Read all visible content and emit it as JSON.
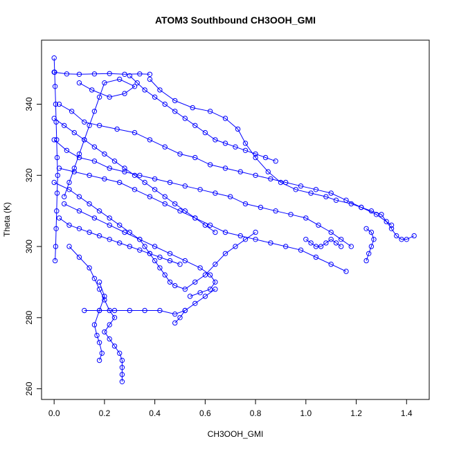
{
  "chart_data": {
    "type": "scatter",
    "title": "ATOM3 Southbound CH3OOH_GMI",
    "xlabel": "CH3OOH_GMI",
    "ylabel": "Theta (K)",
    "xlim": [
      -0.05,
      1.49
    ],
    "ylim": [
      257,
      358
    ],
    "xticks": [
      0.0,
      0.2,
      0.4,
      0.6,
      0.8,
      1.0,
      1.2,
      1.4
    ],
    "xtick_labels": [
      "0.0",
      "0.2",
      "0.4",
      "0.6",
      "0.8",
      "1.0",
      "1.2",
      "1.4"
    ],
    "yticks": [
      260,
      280,
      300,
      320,
      340
    ],
    "ytick_labels": [
      "260",
      "280",
      "300",
      "320",
      "340"
    ],
    "color": "#0000ff",
    "marker": "open-circle",
    "connected": true,
    "grid": false,
    "series": [
      {
        "values": [
          [
            0.0,
            353
          ],
          [
            0.002,
            349
          ],
          [
            0.004,
            345
          ],
          [
            0.006,
            340
          ],
          [
            0.008,
            335
          ],
          [
            0.01,
            330
          ],
          [
            0.012,
            325
          ],
          [
            0.014,
            320
          ],
          [
            0.012,
            315
          ],
          [
            0.01,
            310
          ],
          [
            0.008,
            305
          ],
          [
            0.006,
            300
          ],
          [
            0.004,
            296
          ]
        ]
      },
      {
        "values": [
          [
            0.0,
            349
          ],
          [
            0.05,
            348.5
          ],
          [
            0.1,
            348.4
          ],
          [
            0.16,
            348.5
          ],
          [
            0.22,
            348.6
          ],
          [
            0.28,
            348.4
          ],
          [
            0.34,
            348.5
          ],
          [
            0.38,
            348.4
          ]
        ]
      },
      {
        "values": [
          [
            0.38,
            347
          ],
          [
            0.42,
            344
          ],
          [
            0.48,
            341
          ],
          [
            0.55,
            339
          ],
          [
            0.62,
            338
          ],
          [
            0.68,
            336
          ],
          [
            0.73,
            333
          ],
          [
            0.76,
            329
          ],
          [
            0.8,
            325
          ],
          [
            0.85,
            321
          ],
          [
            0.9,
            318
          ],
          [
            0.96,
            316
          ],
          [
            1.02,
            315
          ],
          [
            1.08,
            314
          ],
          [
            1.12,
            313
          ],
          [
            1.18,
            312
          ],
          [
            1.22,
            311
          ],
          [
            1.26,
            310
          ],
          [
            1.3,
            309
          ],
          [
            1.32,
            307
          ],
          [
            1.34,
            305
          ],
          [
            1.36,
            303
          ],
          [
            1.38,
            302
          ],
          [
            1.4,
            302
          ],
          [
            1.43,
            303
          ]
        ]
      },
      {
        "values": [
          [
            0.02,
            340
          ],
          [
            0.07,
            338
          ],
          [
            0.12,
            335
          ],
          [
            0.18,
            334
          ],
          [
            0.25,
            333
          ],
          [
            0.32,
            332
          ],
          [
            0.38,
            330
          ],
          [
            0.44,
            328
          ],
          [
            0.5,
            326
          ],
          [
            0.56,
            325
          ],
          [
            0.62,
            323
          ],
          [
            0.68,
            322
          ],
          [
            0.74,
            321
          ],
          [
            0.8,
            320
          ],
          [
            0.86,
            319
          ],
          [
            0.92,
            318
          ],
          [
            0.98,
            317
          ],
          [
            1.04,
            316
          ],
          [
            1.1,
            315
          ],
          [
            1.16,
            313
          ],
          [
            1.22,
            311
          ],
          [
            1.28,
            309
          ],
          [
            1.34,
            306
          ]
        ]
      },
      {
        "values": [
          [
            0.0,
            330
          ],
          [
            0.05,
            327
          ],
          [
            0.1,
            325
          ],
          [
            0.16,
            324
          ],
          [
            0.22,
            322
          ],
          [
            0.28,
            321
          ],
          [
            0.34,
            320
          ],
          [
            0.4,
            319
          ],
          [
            0.46,
            318
          ],
          [
            0.52,
            317
          ],
          [
            0.58,
            316
          ],
          [
            0.64,
            315
          ],
          [
            0.7,
            314
          ],
          [
            0.76,
            312
          ],
          [
            0.82,
            311
          ],
          [
            0.88,
            310
          ],
          [
            0.94,
            309
          ],
          [
            1.0,
            308
          ],
          [
            1.05,
            306
          ],
          [
            1.1,
            304
          ],
          [
            1.14,
            302
          ],
          [
            1.18,
            300
          ]
        ]
      },
      {
        "values": [
          [
            0.1,
            346
          ],
          [
            0.15,
            344
          ],
          [
            0.22,
            342
          ],
          [
            0.28,
            343
          ],
          [
            0.32,
            345
          ],
          [
            0.26,
            347
          ],
          [
            0.2,
            346
          ],
          [
            0.18,
            342
          ],
          [
            0.16,
            338
          ],
          [
            0.14,
            334
          ],
          [
            0.12,
            330
          ],
          [
            0.1,
            326
          ],
          [
            0.08,
            322
          ],
          [
            0.06,
            318
          ],
          [
            0.04,
            314
          ]
        ]
      },
      {
        "values": [
          [
            0.02,
            322
          ],
          [
            0.08,
            321
          ],
          [
            0.14,
            320
          ],
          [
            0.2,
            319
          ],
          [
            0.26,
            318
          ],
          [
            0.32,
            316
          ],
          [
            0.38,
            314
          ],
          [
            0.44,
            312
          ],
          [
            0.5,
            310
          ],
          [
            0.56,
            308
          ],
          [
            0.62,
            306
          ],
          [
            0.68,
            304
          ],
          [
            0.74,
            303
          ],
          [
            0.8,
            302
          ],
          [
            0.86,
            301
          ],
          [
            0.92,
            300
          ],
          [
            0.98,
            299
          ],
          [
            1.04,
            297
          ],
          [
            1.1,
            295
          ],
          [
            1.16,
            293
          ]
        ]
      },
      {
        "values": [
          [
            0.04,
            312
          ],
          [
            0.1,
            310
          ],
          [
            0.16,
            308
          ],
          [
            0.22,
            306
          ],
          [
            0.28,
            304
          ],
          [
            0.34,
            302
          ],
          [
            0.4,
            300
          ],
          [
            0.46,
            298
          ],
          [
            0.52,
            296
          ],
          [
            0.58,
            294
          ],
          [
            0.62,
            292
          ],
          [
            0.64,
            290
          ],
          [
            0.62,
            288
          ],
          [
            0.58,
            287
          ],
          [
            0.54,
            286
          ]
        ]
      },
      {
        "values": [
          [
            0.06,
            300
          ],
          [
            0.1,
            297
          ],
          [
            0.14,
            294
          ],
          [
            0.16,
            291
          ],
          [
            0.18,
            288
          ],
          [
            0.2,
            285
          ],
          [
            0.22,
            282
          ],
          [
            0.24,
            280
          ],
          [
            0.22,
            278
          ],
          [
            0.2,
            276
          ],
          [
            0.22,
            274
          ],
          [
            0.24,
            272
          ],
          [
            0.26,
            270
          ],
          [
            0.27,
            268
          ],
          [
            0.27,
            266
          ],
          [
            0.27,
            264
          ],
          [
            0.27,
            262
          ]
        ]
      },
      {
        "values": [
          [
            0.18,
            290
          ],
          [
            0.2,
            286
          ],
          [
            0.18,
            282
          ],
          [
            0.16,
            278
          ],
          [
            0.17,
            275
          ],
          [
            0.18,
            273
          ],
          [
            0.19,
            270
          ],
          [
            0.18,
            268
          ]
        ]
      },
      {
        "values": [
          [
            0.12,
            282
          ],
          [
            0.18,
            282
          ],
          [
            0.24,
            282
          ],
          [
            0.3,
            282
          ],
          [
            0.36,
            282
          ],
          [
            0.42,
            282
          ],
          [
            0.48,
            281
          ],
          [
            0.52,
            282
          ]
        ]
      },
      {
        "values": [
          [
            0.48,
            278.5
          ],
          [
            0.5,
            280
          ],
          [
            0.52,
            282
          ],
          [
            0.56,
            284
          ],
          [
            0.6,
            286
          ],
          [
            0.64,
            288
          ]
        ]
      },
      {
        "values": [
          [
            0.0,
            318
          ],
          [
            0.06,
            316
          ],
          [
            0.1,
            314
          ],
          [
            0.14,
            312
          ],
          [
            0.18,
            310
          ],
          [
            0.22,
            308
          ],
          [
            0.26,
            306
          ],
          [
            0.3,
            304
          ],
          [
            0.34,
            302
          ],
          [
            0.36,
            300
          ],
          [
            0.38,
            298
          ],
          [
            0.4,
            296
          ],
          [
            0.42,
            294
          ],
          [
            0.44,
            292
          ],
          [
            0.46,
            290
          ],
          [
            0.48,
            289
          ],
          [
            0.52,
            288
          ],
          [
            0.56,
            290
          ],
          [
            0.6,
            292
          ],
          [
            0.64,
            295
          ],
          [
            0.68,
            298
          ],
          [
            0.72,
            300
          ],
          [
            0.76,
            302
          ],
          [
            0.8,
            304
          ]
        ]
      },
      {
        "values": [
          [
            0.3,
            348
          ],
          [
            0.33,
            346
          ],
          [
            0.36,
            344
          ],
          [
            0.4,
            342
          ],
          [
            0.44,
            340
          ],
          [
            0.48,
            338
          ],
          [
            0.52,
            336
          ],
          [
            0.56,
            334
          ],
          [
            0.6,
            332
          ],
          [
            0.64,
            330
          ],
          [
            0.68,
            329
          ],
          [
            0.72,
            328
          ],
          [
            0.76,
            327
          ],
          [
            0.8,
            326
          ],
          [
            0.84,
            325
          ],
          [
            0.88,
            324
          ]
        ]
      },
      {
        "values": [
          [
            0.02,
            308
          ],
          [
            0.06,
            306
          ],
          [
            0.1,
            305
          ],
          [
            0.14,
            304
          ],
          [
            0.18,
            303
          ],
          [
            0.22,
            302
          ],
          [
            0.26,
            301
          ],
          [
            0.3,
            300
          ],
          [
            0.34,
            299
          ],
          [
            0.38,
            298
          ],
          [
            0.42,
            297
          ],
          [
            0.46,
            296
          ],
          [
            0.5,
            295
          ]
        ]
      },
      {
        "values": [
          [
            1.0,
            302
          ],
          [
            1.02,
            301
          ],
          [
            1.04,
            300
          ],
          [
            1.06,
            300
          ],
          [
            1.08,
            301
          ],
          [
            1.1,
            302
          ],
          [
            1.12,
            301
          ],
          [
            1.14,
            300
          ]
        ]
      },
      {
        "values": [
          [
            1.24,
            296
          ],
          [
            1.25,
            298
          ],
          [
            1.26,
            300
          ],
          [
            1.27,
            302
          ],
          [
            1.26,
            304
          ],
          [
            1.24,
            305
          ]
        ]
      },
      {
        "values": [
          [
            0.0,
            336
          ],
          [
            0.04,
            334
          ],
          [
            0.08,
            332
          ],
          [
            0.12,
            330
          ],
          [
            0.16,
            328
          ],
          [
            0.2,
            326
          ],
          [
            0.24,
            324
          ],
          [
            0.28,
            322
          ],
          [
            0.32,
            320
          ],
          [
            0.36,
            318
          ],
          [
            0.4,
            316
          ],
          [
            0.44,
            314
          ],
          [
            0.48,
            312
          ],
          [
            0.52,
            310
          ],
          [
            0.56,
            308
          ],
          [
            0.6,
            306
          ],
          [
            0.64,
            304
          ]
        ]
      }
    ]
  }
}
